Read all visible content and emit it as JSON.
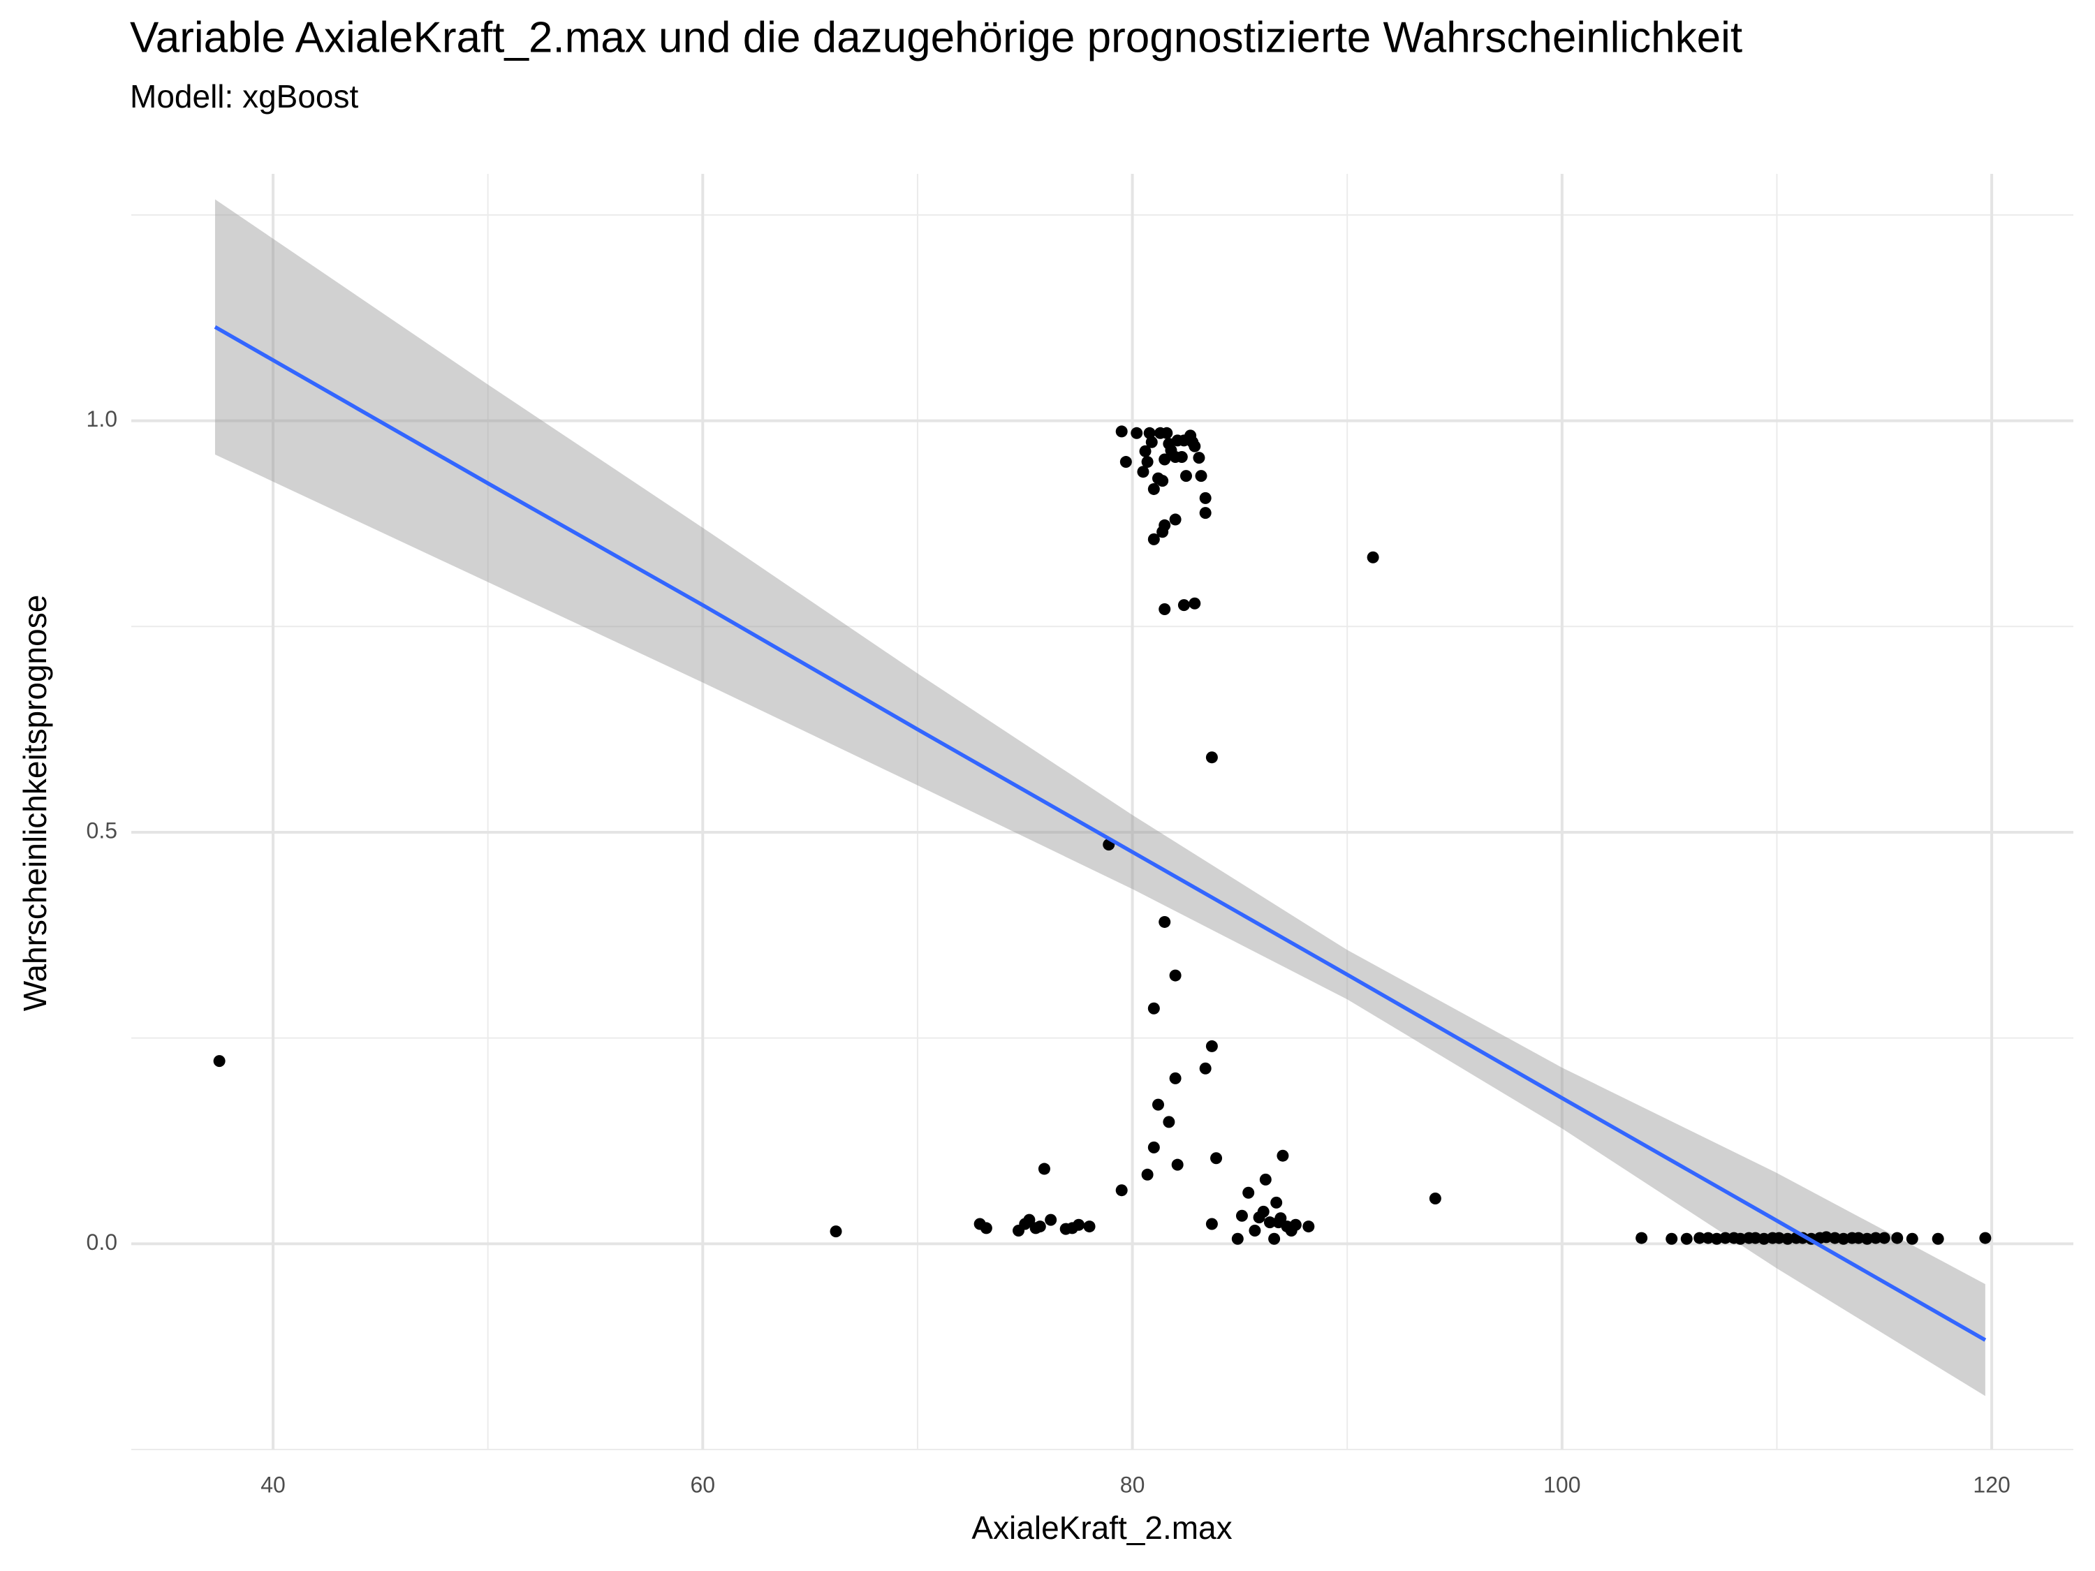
{
  "chart_data": {
    "type": "scatter",
    "title": "Variable AxialeKraft_2.max und die dazugehörige prognostizierte Wahrscheinlichkeit",
    "subtitle": "Modell: xgBoost",
    "x_label": "AxialeKraft_2.max",
    "y_label": "Wahrscheinlichkeitsprognose",
    "xlim": [
      33.4,
      123.8
    ],
    "ylim": [
      -0.25,
      1.3
    ],
    "xticks": [
      40,
      60,
      80,
      100,
      120
    ],
    "yticks": [
      {
        "value": 0,
        "label": "0.0"
      },
      {
        "value": 0.5,
        "label": "0.5"
      },
      {
        "value": 1,
        "label": "1.0"
      }
    ],
    "xminor": [
      50,
      70,
      90,
      110
    ],
    "yminor": [
      -0.25,
      0.25,
      0.75,
      1.25
    ],
    "grid": true,
    "points": {
      "color": "#000000",
      "x": [
        37.5,
        66.2,
        72.9,
        73.2,
        74.7,
        75.0,
        75.2,
        75.5,
        75.7,
        75.9,
        76.2,
        76.9,
        77.2,
        77.5,
        78.0,
        78.9,
        79.5,
        79.5,
        79.7,
        80.2,
        80.5,
        80.6,
        80.7,
        80.8,
        80.9,
        81.0,
        81.2,
        81.3,
        81.4,
        81.5,
        81.6,
        81.7,
        81.8,
        82.0,
        82.1,
        82.3,
        82.4,
        82.5,
        82.7,
        82.8,
        82.9,
        83.1,
        83.2,
        83.4,
        83.4,
        81.0,
        81.4,
        81.5,
        82.0,
        81.5,
        82.4,
        82.9,
        83.7,
        81.0,
        81.5,
        82.0,
        83.7,
        83.4,
        82.0,
        81.2,
        81.7,
        81.0,
        82.1,
        80.7,
        83.9,
        83.7,
        84.9,
        85.1,
        85.4,
        85.7,
        85.9,
        86.1,
        86.2,
        86.4,
        86.6,
        86.7,
        86.8,
        86.9,
        87.0,
        87.2,
        87.4,
        87.6,
        88.2,
        91.2,
        94.1,
        103.7,
        105.1,
        105.8,
        106.4,
        106.8,
        107.2,
        107.6,
        108.0,
        108.3,
        108.7,
        109.0,
        109.4,
        109.8,
        110.1,
        110.5,
        110.9,
        111.2,
        111.6,
        112.0,
        112.3,
        112.7,
        113.1,
        113.5,
        113.8,
        114.2,
        114.6,
        115.0,
        115.6,
        116.3,
        117.5,
        119.7
      ],
      "y": [
        0.222,
        0.015,
        0.024,
        0.019,
        0.016,
        0.024,
        0.029,
        0.019,
        0.021,
        0.091,
        0.029,
        0.018,
        0.019,
        0.023,
        0.021,
        0.485,
        0.065,
        0.987,
        0.95,
        0.985,
        0.938,
        0.963,
        0.95,
        0.985,
        0.974,
        0.917,
        0.93,
        0.985,
        0.927,
        0.953,
        0.985,
        0.972,
        0.964,
        0.956,
        0.976,
        0.956,
        0.976,
        0.933,
        0.982,
        0.974,
        0.969,
        0.955,
        0.933,
        0.906,
        0.888,
        0.856,
        0.865,
        0.873,
        0.88,
        0.771,
        0.776,
        0.778,
        0.591,
        0.286,
        0.391,
        0.326,
        0.24,
        0.213,
        0.201,
        0.169,
        0.148,
        0.117,
        0.096,
        0.084,
        0.104,
        0.024,
        0.006,
        0.034,
        0.062,
        0.016,
        0.032,
        0.039,
        0.078,
        0.026,
        0.006,
        0.05,
        0.026,
        0.031,
        0.107,
        0.021,
        0.016,
        0.023,
        0.021,
        0.834,
        0.055,
        0.007,
        0.006,
        0.006,
        0.007,
        0.007,
        0.006,
        0.007,
        0.007,
        0.006,
        0.007,
        0.007,
        0.006,
        0.007,
        0.007,
        0.006,
        0.007,
        0.007,
        0.006,
        0.007,
        0.008,
        0.007,
        0.006,
        0.007,
        0.007,
        0.006,
        0.007,
        0.007,
        0.007,
        0.006,
        0.006,
        0.007
      ]
    },
    "fit": {
      "color": "#3366ff",
      "band_color": "#999999",
      "x": [
        37.3,
        50,
        60,
        70,
        80,
        90,
        100,
        110,
        119.7
      ],
      "y": [
        1.114,
        0.924,
        0.776,
        0.625,
        0.476,
        0.327,
        0.177,
        0.028,
        -0.117
      ],
      "upper": [
        1.269,
        1.044,
        0.87,
        0.693,
        0.521,
        0.357,
        0.214,
        0.086,
        -0.049
      ],
      "lower": [
        0.959,
        0.804,
        0.682,
        0.557,
        0.431,
        0.297,
        0.14,
        -0.03,
        -0.185
      ]
    }
  }
}
